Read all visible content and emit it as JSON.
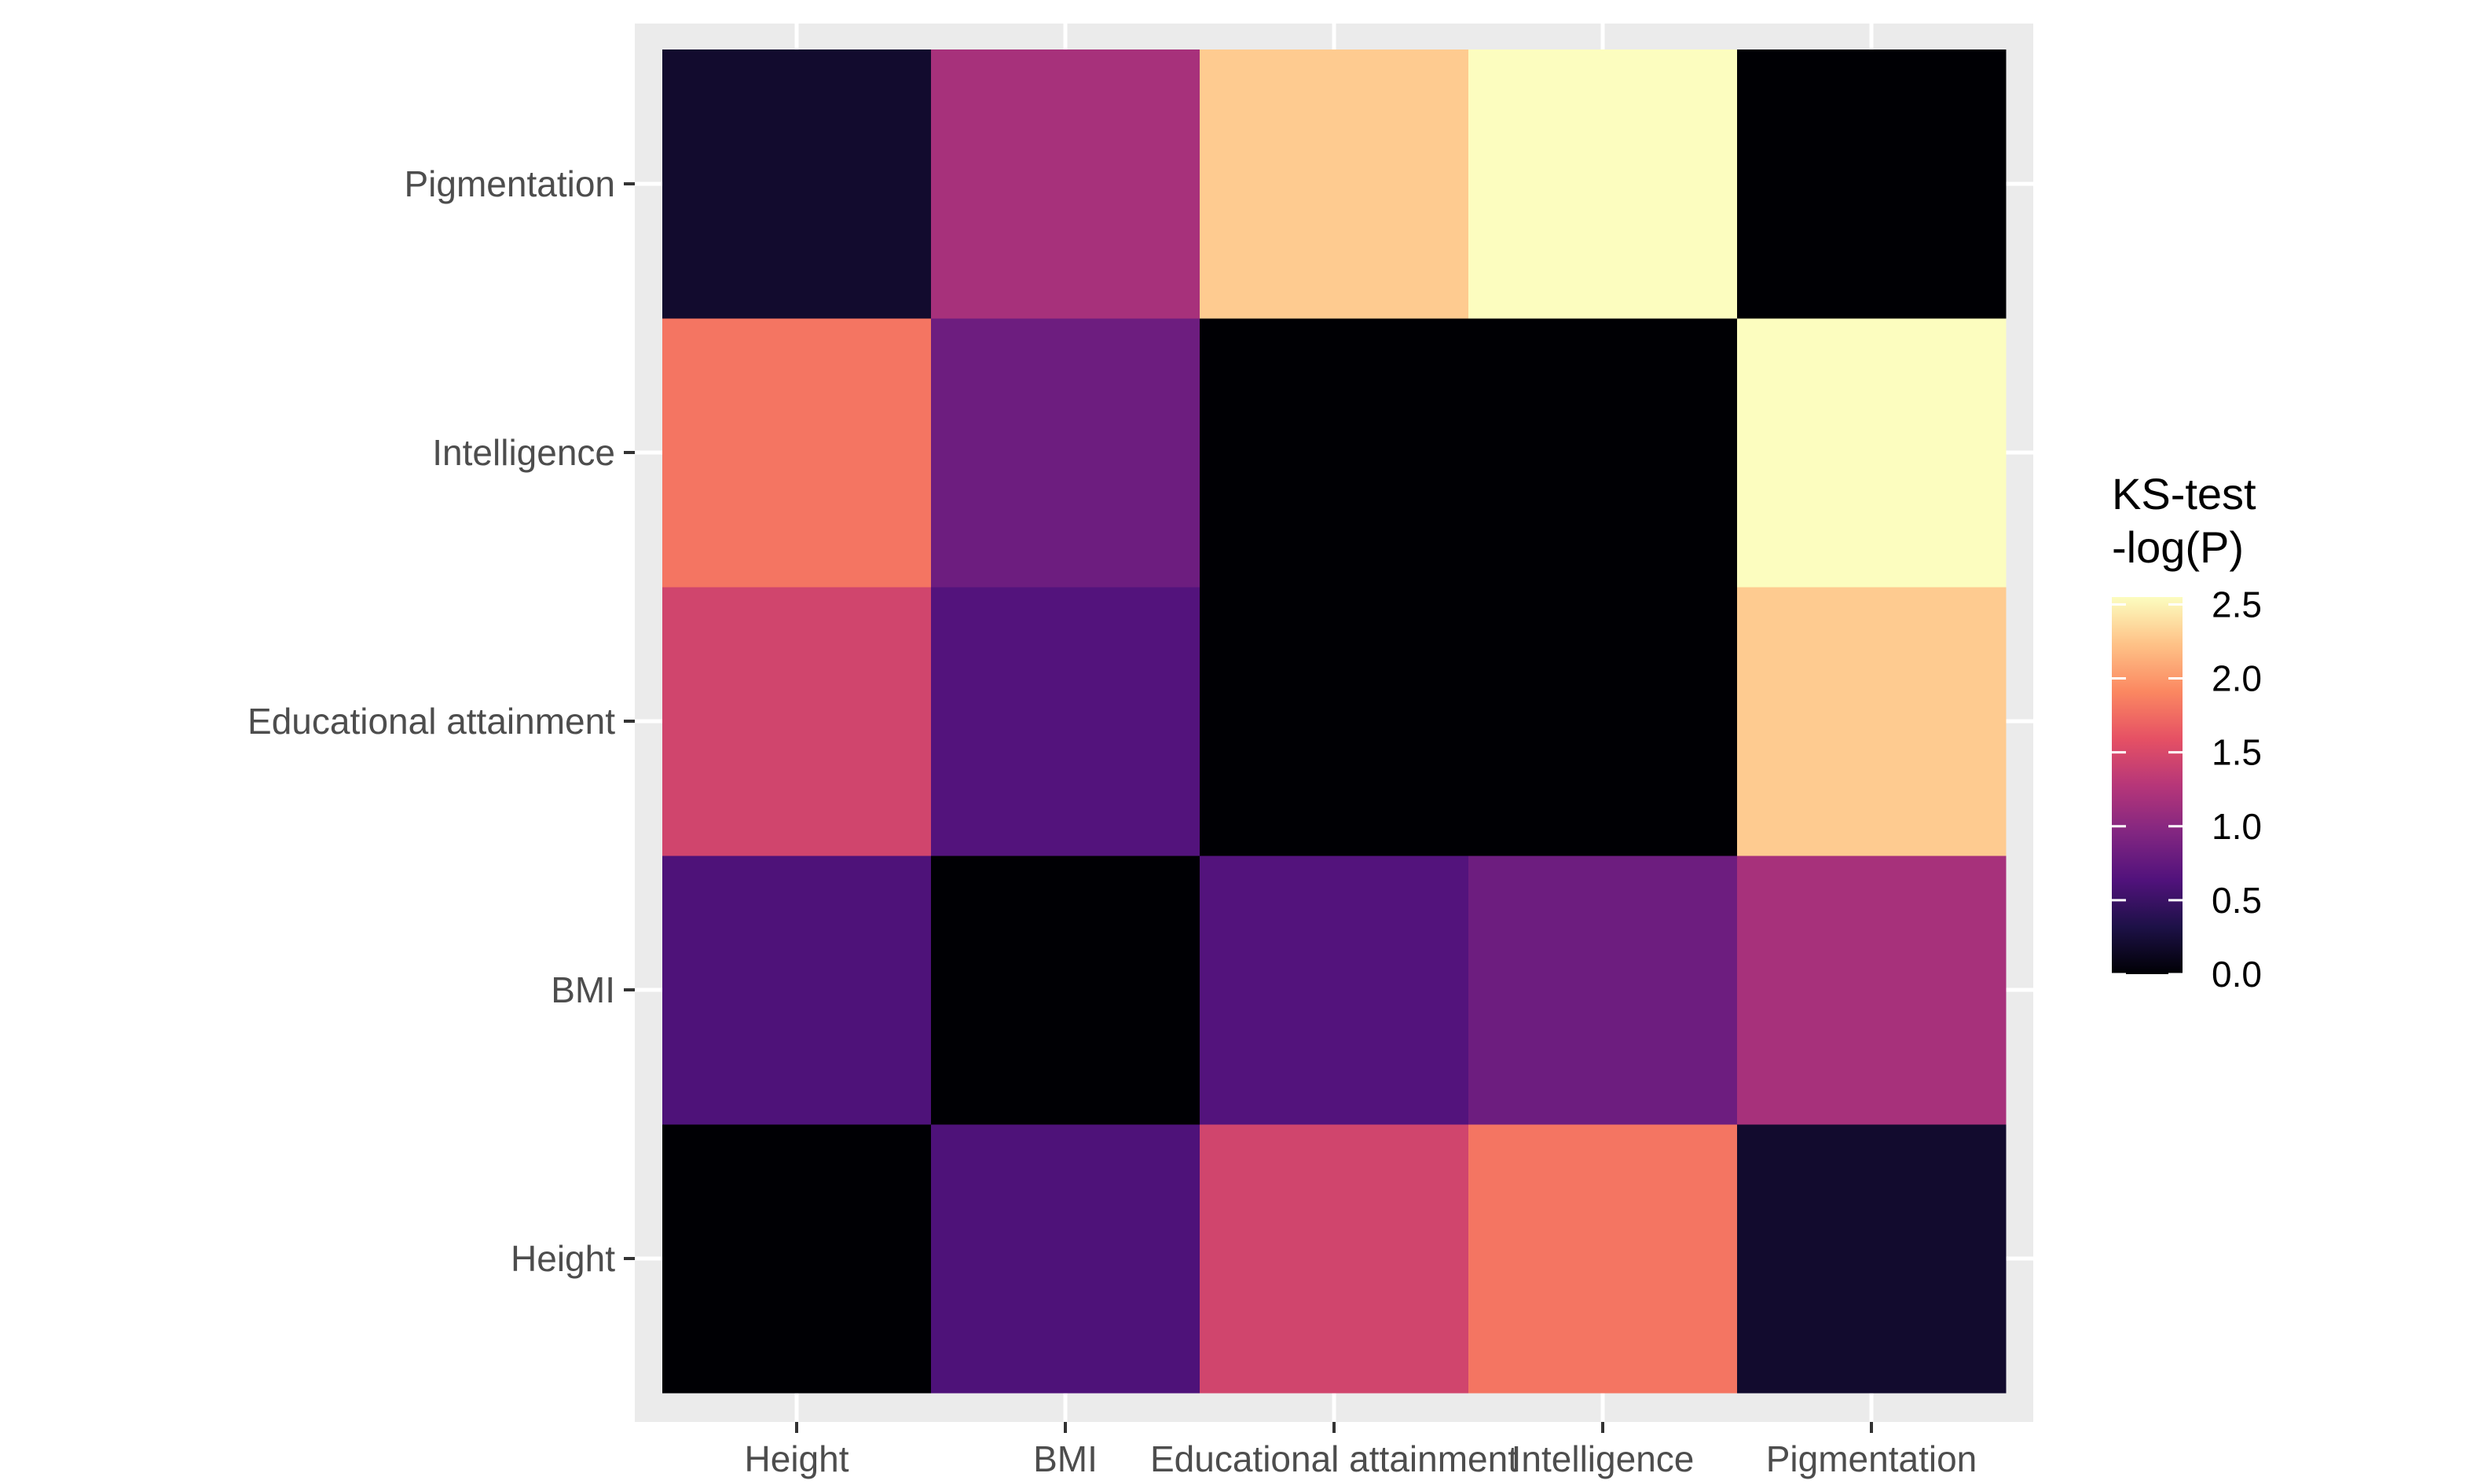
{
  "chart_data": {
    "type": "heatmap",
    "x_categories": [
      "Height",
      "BMI",
      "Educational attainment",
      "Intelligence",
      "Pigmentation"
    ],
    "y_categories": [
      "Height",
      "BMI",
      "Educational attainment",
      "Intelligence",
      "Pigmentation"
    ],
    "values": [
      [
        0.0,
        0.62,
        1.45,
        1.8,
        0.2
      ],
      [
        0.62,
        0.0,
        0.65,
        0.82,
        1.18
      ],
      [
        1.45,
        0.65,
        0.0,
        0.0,
        2.28
      ],
      [
        1.8,
        0.82,
        0.0,
        0.0,
        2.55
      ],
      [
        0.2,
        1.18,
        2.28,
        2.55,
        0.0
      ]
    ],
    "value_encoding": "values[row][col], row index follows y_categories (bottom to top), col index follows x_categories (left to right)",
    "legend": {
      "title_lines": [
        "KS-test",
        "-log(P)"
      ],
      "ticks": [
        0.0,
        0.5,
        1.0,
        1.5,
        2.0,
        2.5
      ],
      "tick_labels": [
        "0.0",
        "0.5",
        "1.0",
        "1.5",
        "2.0",
        "2.5"
      ],
      "range": [
        0,
        2.55
      ],
      "placement": "right"
    },
    "colormap": "magma",
    "colormap_stops": [
      "#000004",
      "#1d1147",
      "#51127c",
      "#822681",
      "#b63679",
      "#e65164",
      "#fb8861",
      "#fec287",
      "#fcfdbf"
    ],
    "panel_background": "#ebebeb",
    "grid_color": "#ffffff",
    "grid": true,
    "title": "",
    "xlabel": "",
    "ylabel": ""
  }
}
